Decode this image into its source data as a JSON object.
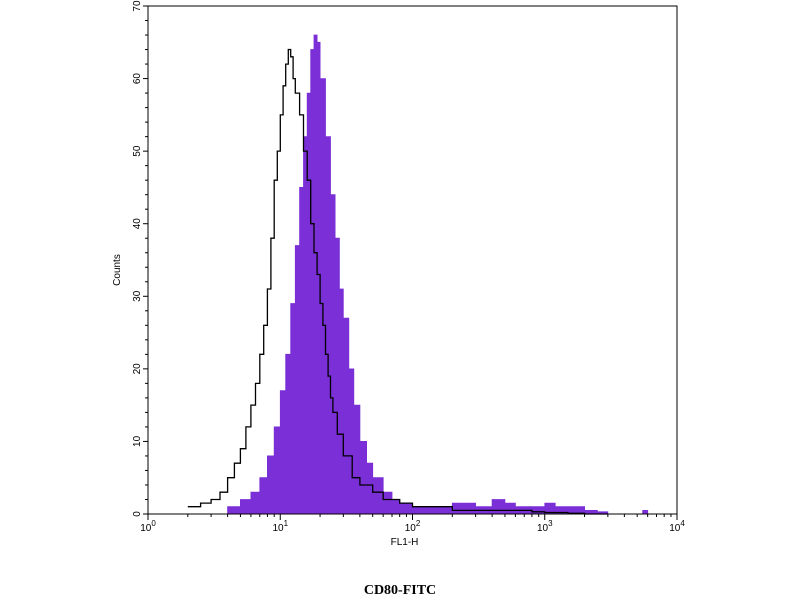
{
  "chart_data": {
    "type": "area",
    "xlabel": "FL1-H",
    "ylabel": "Counts",
    "caption": "CD80-FITC",
    "x_scale": "log",
    "xlim": [
      1,
      10000
    ],
    "ylim": [
      0,
      70
    ],
    "x_ticks": [
      {
        "base": "10",
        "exp": "0"
      },
      {
        "base": "10",
        "exp": "1"
      },
      {
        "base": "10",
        "exp": "2"
      },
      {
        "base": "10",
        "exp": "3"
      },
      {
        "base": "10",
        "exp": "4"
      }
    ],
    "y_ticks": [
      "0",
      "10",
      "20",
      "30",
      "40",
      "50",
      "60",
      "70"
    ],
    "grid": false,
    "colors": {
      "fill": "#7b2fd6",
      "outline": "#000000",
      "frame": "#000000"
    },
    "series": [
      {
        "style": "filled",
        "x": [
          3,
          4,
          5,
          6,
          7,
          8,
          9,
          10,
          11,
          12,
          13,
          14,
          15,
          16,
          17,
          18,
          19,
          20,
          22,
          24,
          26,
          28,
          30,
          33,
          36,
          40,
          45,
          50,
          60,
          70,
          80,
          100,
          150,
          200,
          300,
          400,
          500,
          600,
          800,
          1000,
          1200,
          1500,
          2000,
          2500,
          3000,
          4000,
          5000,
          5500,
          6000,
          7000
        ],
        "y": [
          0,
          1,
          2,
          3,
          5,
          8,
          12,
          17,
          22,
          29,
          37,
          45,
          52,
          58,
          64,
          66,
          65,
          60,
          52,
          44,
          38,
          31,
          27,
          20,
          15,
          10,
          7,
          5,
          3,
          2,
          1.5,
          1,
          1,
          1.5,
          1,
          2,
          1.5,
          1,
          1,
          1.5,
          1,
          1,
          0.5,
          0.3,
          0,
          0,
          0,
          0.5,
          0,
          0
        ]
      },
      {
        "style": "outline",
        "x": [
          2,
          2.5,
          3,
          3.5,
          4,
          4.5,
          5,
          5.5,
          6,
          6.5,
          7,
          7.5,
          8,
          8.5,
          9,
          9.5,
          10,
          10.5,
          11,
          11.5,
          12,
          12.5,
          13,
          14,
          15,
          16,
          17,
          18,
          19,
          20,
          21,
          22,
          23,
          24,
          25,
          27,
          30,
          35,
          40,
          50,
          60,
          80,
          100,
          150,
          200,
          300,
          500,
          800,
          1000,
          1500,
          2000,
          3000
        ],
        "y": [
          1,
          1.5,
          2,
          3,
          5,
          7,
          9,
          12,
          15,
          18,
          22,
          26,
          31,
          38,
          46,
          50,
          55,
          59,
          62,
          64,
          63,
          60,
          58,
          55,
          50,
          46,
          40,
          36,
          33,
          29,
          26,
          22,
          19,
          16,
          14,
          11,
          8,
          5,
          4,
          3,
          2,
          1.5,
          1,
          1,
          0.5,
          0.5,
          0.5,
          0.3,
          0.2,
          0.1,
          0,
          0
        ]
      }
    ]
  }
}
